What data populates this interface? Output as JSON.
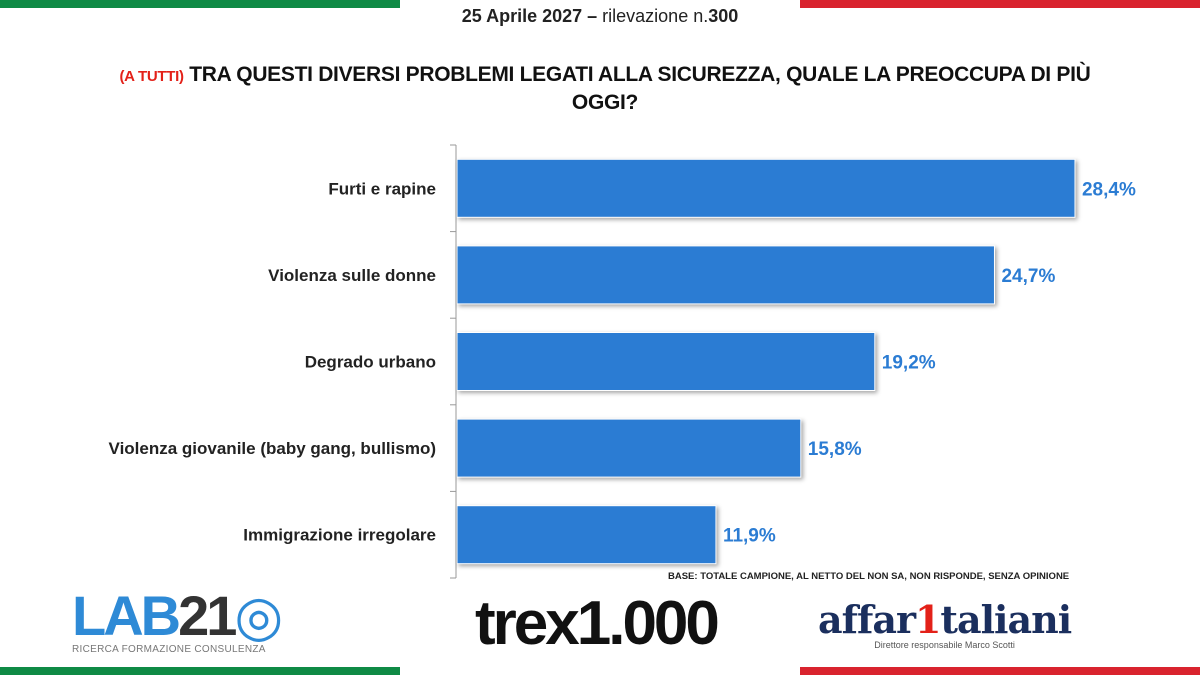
{
  "header": {
    "date": "25 Aprile 2027 –",
    "survey_prefix": "rilevazione n.",
    "survey_number": "300"
  },
  "question": {
    "tag": "(A TUTTI)",
    "text": "TRA QUESTI DIVERSI PROBLEMI LEGATI ALLA SICUREZZA, QUALE LA PREOCCUPA DI PIÙ OGGI?"
  },
  "chart_data": {
    "type": "bar",
    "orientation": "horizontal",
    "categories": [
      "Furti e rapine",
      "Violenza sulle donne",
      "Degrado urbano",
      "Violenza giovanile (baby gang, bullismo)",
      "Immigrazione irregolare"
    ],
    "values": [
      28.4,
      24.7,
      19.2,
      15.8,
      11.9
    ],
    "labels": [
      "28,4%",
      "24,7%",
      "19,2%",
      "15,8%",
      "11,9%"
    ],
    "unit": "%",
    "grid": false,
    "bar_color": "#2b7cd3",
    "label_color": "#2b7cd3"
  },
  "footnote": "BASE: TOTALE CAMPIONE, AL NETTO DEL NON SA, NON RISPONDE, SENZA OPINIONE",
  "logos": {
    "lab21": {
      "name_a": "LAB",
      "name_b": "21",
      "tagline": "RICERCA FORMAZIONE CONSULENZA"
    },
    "trex1000": {
      "name": "trex1.000"
    },
    "affaritaliani": {
      "name_a": "affar",
      "name_b": "1",
      "name_c": "taliani",
      "tagline": "Direttore responsabile Marco Scotti"
    }
  },
  "colors": {
    "green": "#0f8a45",
    "red": "#d9232e"
  }
}
